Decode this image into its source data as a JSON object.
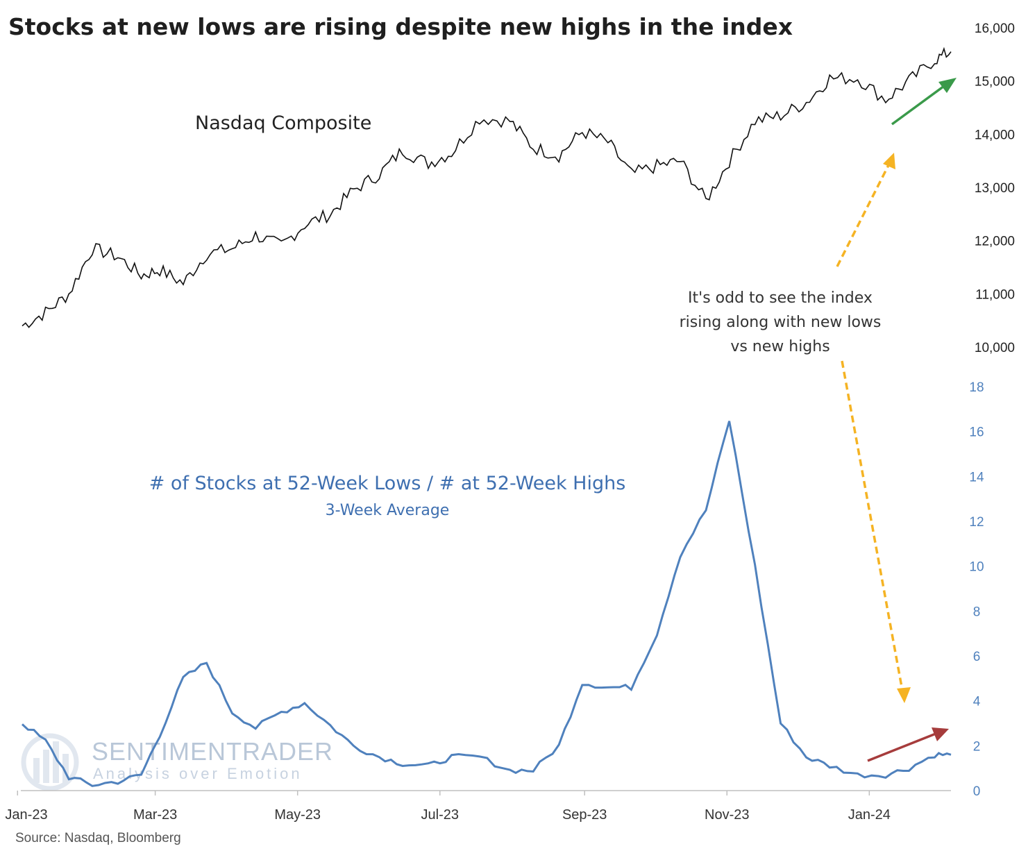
{
  "title": "Stocks at new lows are rising despite new highs in the index",
  "source": "Source: Nasdaq, Bloomberg",
  "watermark": {
    "brand": "SENTIMENTRADER",
    "tagline": "Analysis over Emotion"
  },
  "annotation": {
    "lines": [
      "It's odd to see the index",
      "rising along with new lows",
      "vs new highs"
    ]
  },
  "colors": {
    "nasdaq": "#111111",
    "ratio": "#4f81bd",
    "arrow_green": "#3a9a4a",
    "arrow_red": "#a63c3c",
    "arrow_dashed": "#f5b323"
  },
  "chart_data": {
    "type": "line",
    "x_ticks": [
      "Jan-23",
      "Mar-23",
      "May-23",
      "Jul-23",
      "Sep-23",
      "Nov-23",
      "Jan-24"
    ],
    "panels": [
      {
        "series_label": "Nasdaq Composite",
        "ylim": [
          10000,
          16000
        ],
        "y_ticks": [
          "10,000",
          "11,000",
          "12,000",
          "13,000",
          "14,000",
          "15,000",
          "16,000"
        ],
        "x": [
          "2023-01-03",
          "2023-01-13",
          "2023-01-23",
          "2023-02-02",
          "2023-02-13",
          "2023-02-23",
          "2023-03-03",
          "2023-03-13",
          "2023-03-23",
          "2023-04-03",
          "2023-04-13",
          "2023-04-24",
          "2023-05-04",
          "2023-05-15",
          "2023-05-25",
          "2023-06-05",
          "2023-06-15",
          "2023-06-26",
          "2023-07-06",
          "2023-07-18",
          "2023-07-31",
          "2023-08-10",
          "2023-08-21",
          "2023-08-31",
          "2023-09-11",
          "2023-09-21",
          "2023-10-02",
          "2023-10-12",
          "2023-10-23",
          "2023-11-02",
          "2023-11-13",
          "2023-11-24",
          "2023-12-05",
          "2023-12-15",
          "2023-12-27",
          "2024-01-08",
          "2024-01-18",
          "2024-01-29",
          "2024-02-05"
        ],
        "values": [
          10400,
          10650,
          11000,
          11850,
          11700,
          11350,
          11450,
          11200,
          11750,
          11850,
          12100,
          11900,
          12300,
          12500,
          12950,
          13250,
          13700,
          13450,
          13650,
          14300,
          14250,
          13750,
          13600,
          14050,
          13850,
          13250,
          13400,
          13500,
          12750,
          13500,
          14250,
          14350,
          14600,
          15050,
          15050,
          14650,
          15000,
          15400,
          15550
        ]
      },
      {
        "series_label": "# of Stocks at 52-Week Lows / # at 52-Week Highs",
        "series_sublabel": "3-Week Average",
        "ylim": [
          0,
          18
        ],
        "y_ticks": [
          "0",
          "2",
          "4",
          "6",
          "8",
          "10",
          "12",
          "14",
          "16",
          "18"
        ],
        "x": [
          "2023-01-03",
          "2023-01-13",
          "2023-01-23",
          "2023-02-02",
          "2023-02-13",
          "2023-02-23",
          "2023-03-03",
          "2023-03-13",
          "2023-03-23",
          "2023-04-03",
          "2023-04-13",
          "2023-04-24",
          "2023-05-04",
          "2023-05-15",
          "2023-05-25",
          "2023-06-05",
          "2023-06-15",
          "2023-06-26",
          "2023-07-06",
          "2023-07-18",
          "2023-07-31",
          "2023-08-10",
          "2023-08-21",
          "2023-08-31",
          "2023-09-11",
          "2023-09-21",
          "2023-10-02",
          "2023-10-12",
          "2023-10-23",
          "2023-11-02",
          "2023-11-13",
          "2023-11-24",
          "2023-12-05",
          "2023-12-15",
          "2023-12-27",
          "2024-01-08",
          "2024-01-18",
          "2024-01-29",
          "2024-02-05"
        ],
        "values": [
          3.0,
          2.2,
          0.6,
          0.25,
          0.4,
          0.7,
          2.5,
          5.0,
          5.7,
          3.5,
          2.8,
          3.5,
          3.9,
          2.9,
          2.0,
          1.5,
          1.2,
          1.1,
          1.5,
          1.5,
          0.9,
          0.9,
          2.0,
          4.8,
          4.6,
          4.6,
          7.0,
          10.5,
          12.5,
          16.5,
          10.0,
          3.0,
          1.5,
          1.1,
          0.7,
          0.7,
          1.0,
          1.6,
          1.6
        ]
      }
    ]
  }
}
